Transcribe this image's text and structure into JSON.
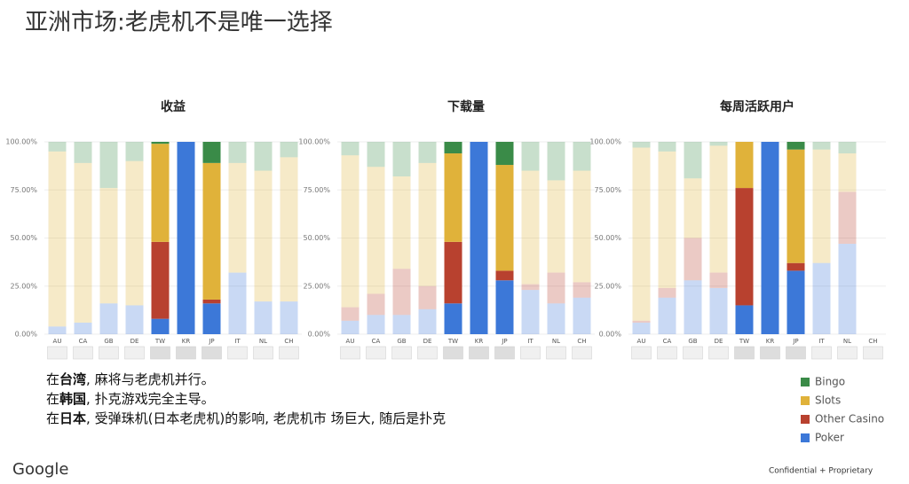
{
  "title": "亚洲市场:老虎机不是唯一选择",
  "notes": [
    [
      "在",
      "台湾",
      ", 麻将与老虎机并行。"
    ],
    [
      "在",
      "韩国",
      ", 扑克游戏完全主导。"
    ],
    [
      "在",
      "日本",
      ", 受弹珠机(日本老虎机)的影响, 老虎机市 场巨大, 随后是扑克"
    ]
  ],
  "footer": {
    "brand": "Google",
    "note": "Confidential + Proprietary"
  },
  "chart_data": [
    {
      "type": "stacked_bar",
      "title": "收益",
      "categories": [
        "AU",
        "CA",
        "GB",
        "DE",
        "TW",
        "KR",
        "JP",
        "IT",
        "NL",
        "CH"
      ],
      "highlight": [
        4,
        5,
        6
      ],
      "ylim": [
        0,
        100
      ],
      "yticks": [
        {
          "value": 0,
          "label": "0.00%"
        },
        {
          "value": 25,
          "label": "25.00%"
        },
        {
          "value": 50,
          "label": "50.00%"
        },
        {
          "value": 75,
          "label": "75.00%"
        },
        {
          "value": 100,
          "label": "100.00%"
        }
      ],
      "series": [
        {
          "name": "Poker",
          "color": "#3c78d8",
          "values": [
            4,
            6,
            16,
            15,
            8,
            100,
            16,
            32,
            17,
            17
          ]
        },
        {
          "name": "Other Casino",
          "color": "#b8412f",
          "values": [
            0,
            0,
            0,
            0,
            40,
            0,
            2,
            0,
            0,
            0
          ]
        },
        {
          "name": "Slots",
          "color": "#e0b23a",
          "values": [
            91,
            83,
            60,
            75,
            51,
            0,
            71,
            57,
            68,
            75
          ]
        },
        {
          "name": "Bingo",
          "color": "#3a8b48",
          "values": [
            5,
            11,
            24,
            10,
            1,
            0,
            11,
            11,
            15,
            8
          ]
        }
      ]
    },
    {
      "type": "stacked_bar",
      "title": "下载量",
      "categories": [
        "AU",
        "CA",
        "GB",
        "DE",
        "TW",
        "KR",
        "JP",
        "IT",
        "NL",
        "CH"
      ],
      "highlight": [
        4,
        5,
        6
      ],
      "ylim": [
        0,
        100
      ],
      "yticks": [
        {
          "value": 0,
          "label": "0.00%"
        },
        {
          "value": 25,
          "label": "25.00%"
        },
        {
          "value": 50,
          "label": "50.00%"
        },
        {
          "value": 75,
          "label": "75.00%"
        },
        {
          "value": 100,
          "label": "100.00%"
        }
      ],
      "series": [
        {
          "values": [
            7,
            10,
            10,
            13,
            16,
            100,
            28,
            23,
            16,
            19
          ]
        },
        {
          "values": [
            7,
            11,
            24,
            12,
            32,
            0,
            5,
            3,
            16,
            8
          ]
        },
        {
          "values": [
            79,
            66,
            48,
            64,
            46,
            0,
            55,
            59,
            48,
            58
          ]
        },
        {
          "values": [
            7,
            13,
            18,
            11,
            6,
            0,
            12,
            15,
            20,
            15
          ]
        }
      ]
    },
    {
      "type": "stacked_bar",
      "title": "每周活跃用户",
      "categories": [
        "AU",
        "CA",
        "GB",
        "DE",
        "TW",
        "KR",
        "JP",
        "IT",
        "NL",
        "CH"
      ],
      "highlight": [
        4,
        5,
        6
      ],
      "ylim": [
        0,
        100
      ],
      "yticks": [
        {
          "value": 0,
          "label": "0.00%"
        },
        {
          "value": 25,
          "label": "25.00%"
        },
        {
          "value": 50,
          "label": "50.00%"
        },
        {
          "value": 75,
          "label": "75.00%"
        },
        {
          "value": 100,
          "label": "100.00%"
        }
      ],
      "series": [
        {
          "values": [
            6,
            19,
            28,
            24,
            15,
            100,
            33,
            37,
            47,
            0
          ]
        },
        {
          "values": [
            1,
            5,
            22,
            8,
            61,
            0,
            4,
            0,
            27,
            0
          ]
        },
        {
          "values": [
            90,
            71,
            31,
            66,
            24,
            0,
            59,
            59,
            20,
            0
          ]
        },
        {
          "values": [
            3,
            5,
            19,
            2,
            0,
            0,
            4,
            4,
            6,
            0
          ]
        }
      ]
    }
  ]
}
